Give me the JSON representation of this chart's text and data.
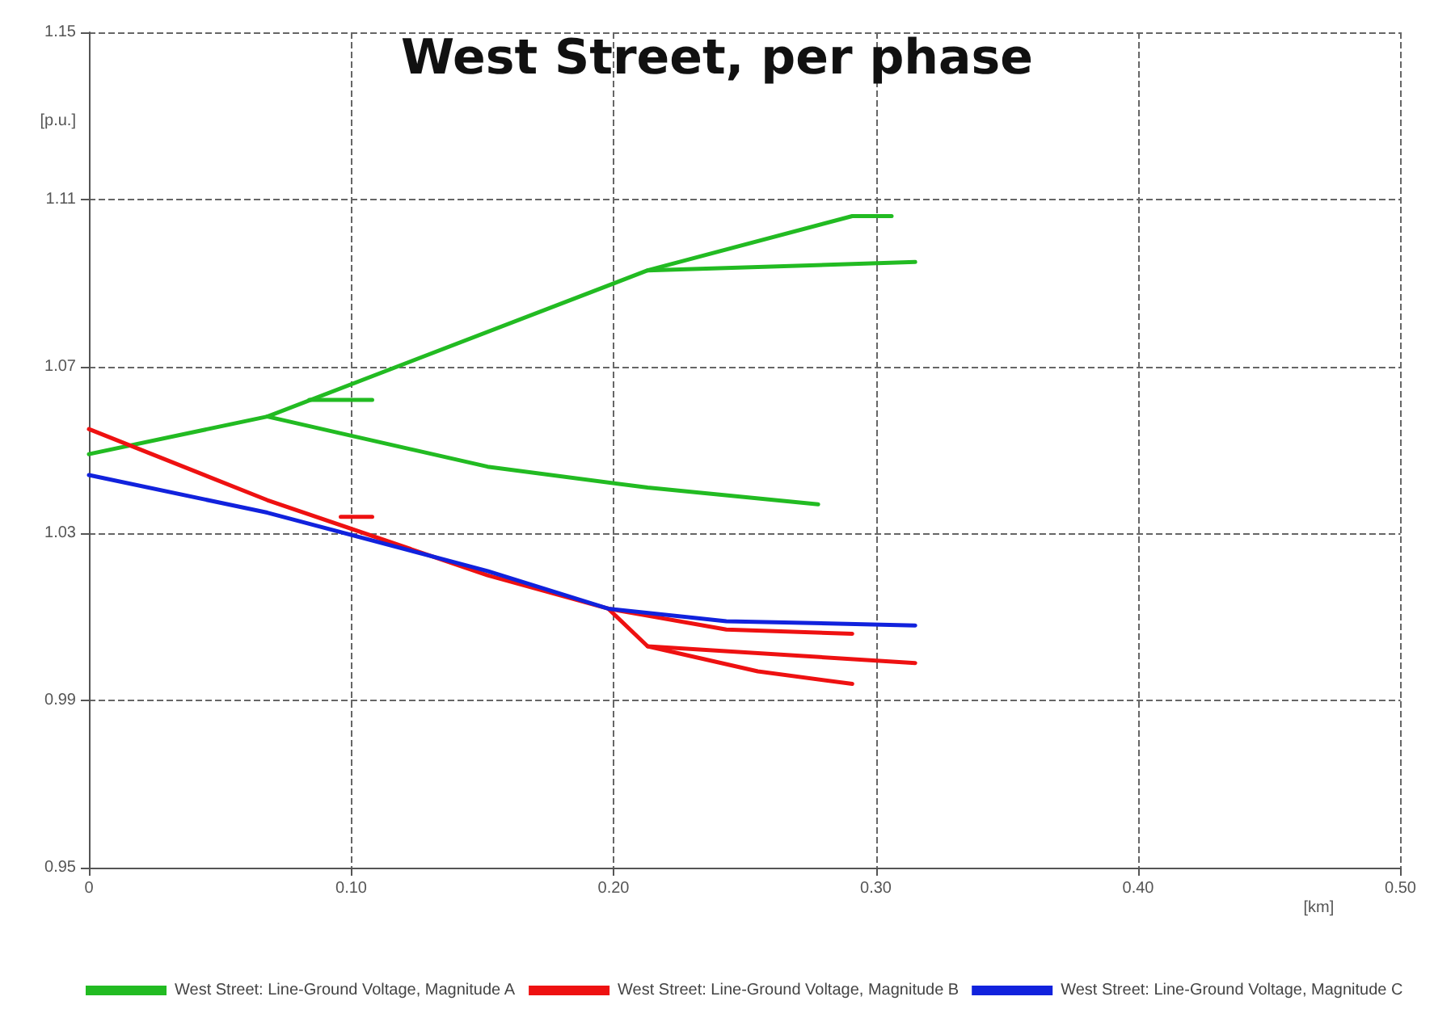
{
  "chart_data": {
    "type": "line",
    "title": "West Street, per phase",
    "ylabel": "[p.u.]",
    "xlabel": "[km]",
    "xlim": [
      0,
      0.5
    ],
    "xticks": [
      0,
      {
        "value": 0.1,
        "label": "0.10"
      },
      {
        "value": 0.2,
        "label": "0.20"
      },
      {
        "value": 0.3,
        "label": "0.30"
      },
      {
        "value": 0.4,
        "label": "0.40"
      },
      {
        "value": 0.5,
        "label": "0.50"
      }
    ],
    "ylim": [
      0.95,
      1.15
    ],
    "yticks": [
      0.95,
      0.99,
      1.03,
      1.07,
      1.11,
      1.15
    ],
    "grid": true,
    "line_style": "solid",
    "marker": "none",
    "legend": "bottom",
    "series": [
      {
        "name": "West Street: Line-Ground Voltage, Magnitude A",
        "color": "#22bb22",
        "x": [
          0,
          0.068,
          0.213,
          0.291,
          0.306
        ],
        "values": [
          1.049,
          1.058,
          1.093,
          1.106,
          1.106
        ]
      },
      {
        "color": "#22bb22",
        "x": [
          0.213,
          0.315
        ],
        "values": [
          1.093,
          1.095
        ]
      },
      {
        "color": "#22bb22",
        "x": [
          0.068,
          0.096,
          0.152,
          0.213,
          0.278
        ],
        "values": [
          1.058,
          1.054,
          1.046,
          1.041,
          1.037
        ]
      },
      {
        "color": "#22bb22",
        "x": [
          0.084,
          0.108
        ],
        "values": [
          1.062,
          1.062
        ]
      },
      {
        "name": "West Street: Line-Ground Voltage, Magnitude B",
        "color": "#ee1111",
        "x": [
          0,
          0.068,
          0.152,
          0.198,
          0.243,
          0.291
        ],
        "values": [
          1.055,
          1.038,
          1.02,
          1.012,
          1.007,
          1.006
        ]
      },
      {
        "color": "#ee1111",
        "x": [
          0.198,
          0.213,
          0.315
        ],
        "values": [
          1.012,
          1.003,
          0.999
        ]
      },
      {
        "color": "#ee1111",
        "x": [
          0.213,
          0.255,
          0.291
        ],
        "values": [
          1.003,
          0.997,
          0.994
        ]
      },
      {
        "color": "#ee1111",
        "x": [
          0.096,
          0.108
        ],
        "values": [
          1.034,
          1.034
        ]
      },
      {
        "name": "West Street: Line-Ground Voltage, Magnitude C",
        "color": "#1122dd",
        "x": [
          0,
          0.068,
          0.152,
          0.198,
          0.243,
          0.315
        ],
        "values": [
          1.044,
          1.035,
          1.021,
          1.012,
          1.009,
          1.008
        ]
      }
    ]
  }
}
